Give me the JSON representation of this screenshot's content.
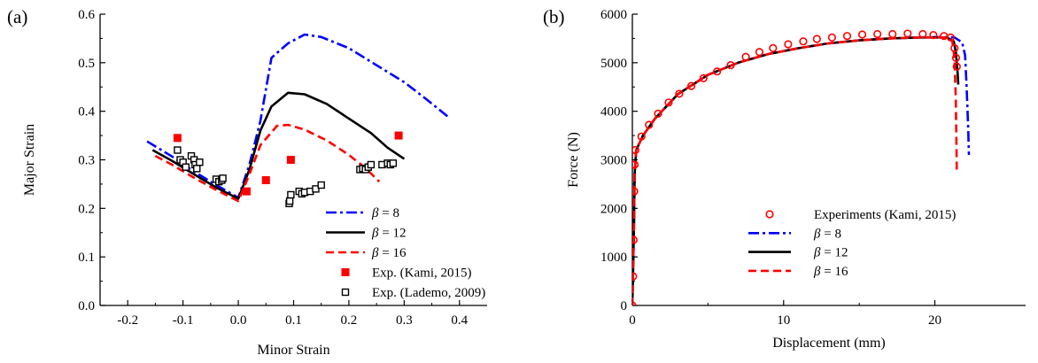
{
  "chart_data": [
    {
      "type": "scatter",
      "panel_label": "(a)",
      "xlabel": "Minor Strain",
      "ylabel": "Major Strain",
      "xlim": [
        -0.25,
        0.45
      ],
      "ylim": [
        0.0,
        0.6
      ],
      "xticks": [
        -0.2,
        -0.1,
        0.0,
        0.1,
        0.2,
        0.3,
        0.4
      ],
      "xtick_labels": [
        "-0.2",
        "-0.1",
        "0.0",
        "0.1",
        "0.2",
        "0.3",
        "0.4"
      ],
      "yticks": [
        0.0,
        0.1,
        0.2,
        0.3,
        0.4,
        0.5,
        0.6
      ],
      "ytick_labels": [
        "0.0",
        "0.1",
        "0.2",
        "0.3",
        "0.4",
        "0.5",
        "0.6"
      ],
      "grid": false,
      "legend_position": "bottom-right",
      "series": [
        {
          "name": "β = 8",
          "name_prefix": "β",
          "name_suffix": " = 8",
          "kind": "line",
          "style": "dashdot",
          "color": "#0000ff",
          "points": [
            [
              -0.165,
              0.338
            ],
            [
              -0.12,
              0.307
            ],
            [
              -0.08,
              0.276
            ],
            [
              -0.04,
              0.248
            ],
            [
              0.0,
              0.222
            ],
            [
              0.02,
              0.29
            ],
            [
              0.04,
              0.38
            ],
            [
              0.06,
              0.51
            ],
            [
              0.09,
              0.54
            ],
            [
              0.12,
              0.558
            ],
            [
              0.15,
              0.553
            ],
            [
              0.2,
              0.53
            ],
            [
              0.25,
              0.495
            ],
            [
              0.3,
              0.46
            ],
            [
              0.34,
              0.425
            ],
            [
              0.38,
              0.388
            ]
          ]
        },
        {
          "name": "β = 12",
          "name_prefix": "β",
          "name_suffix": " = 12",
          "kind": "line",
          "style": "solid",
          "color": "#000000",
          "points": [
            [
              -0.155,
              0.32
            ],
            [
              -0.12,
              0.298
            ],
            [
              -0.08,
              0.27
            ],
            [
              -0.04,
              0.243
            ],
            [
              0.0,
              0.22
            ],
            [
              0.02,
              0.28
            ],
            [
              0.04,
              0.36
            ],
            [
              0.06,
              0.41
            ],
            [
              0.09,
              0.438
            ],
            [
              0.12,
              0.435
            ],
            [
              0.16,
              0.415
            ],
            [
              0.2,
              0.385
            ],
            [
              0.24,
              0.355
            ],
            [
              0.27,
              0.325
            ],
            [
              0.3,
              0.302
            ]
          ]
        },
        {
          "name": "β = 16",
          "name_prefix": "β",
          "name_suffix": " = 16",
          "kind": "line",
          "style": "dashed",
          "color": "#ff0000",
          "points": [
            [
              -0.15,
              0.308
            ],
            [
              -0.12,
              0.29
            ],
            [
              -0.08,
              0.263
            ],
            [
              -0.04,
              0.238
            ],
            [
              0.0,
              0.215
            ],
            [
              0.02,
              0.27
            ],
            [
              0.04,
              0.33
            ],
            [
              0.07,
              0.37
            ],
            [
              0.09,
              0.372
            ],
            [
              0.12,
              0.362
            ],
            [
              0.16,
              0.34
            ],
            [
              0.2,
              0.31
            ],
            [
              0.23,
              0.283
            ],
            [
              0.255,
              0.255
            ]
          ]
        },
        {
          "name": "Exp. (Kami, 2015)",
          "kind": "marker",
          "marker": "filled-square",
          "color": "#ff0000",
          "points": [
            [
              -0.11,
              0.345
            ],
            [
              0.015,
              0.235
            ],
            [
              0.05,
              0.258
            ],
            [
              0.095,
              0.3
            ],
            [
              0.29,
              0.35
            ]
          ]
        },
        {
          "name": "Exp. (Lademo, 2009)",
          "kind": "marker",
          "marker": "open-square",
          "color": "#000000",
          "points": [
            [
              -0.11,
              0.32
            ],
            [
              -0.105,
              0.3
            ],
            [
              -0.1,
              0.295
            ],
            [
              -0.095,
              0.285
            ],
            [
              -0.085,
              0.308
            ],
            [
              -0.08,
              0.3
            ],
            [
              -0.078,
              0.29
            ],
            [
              -0.075,
              0.282
            ],
            [
              -0.07,
              0.295
            ],
            [
              -0.04,
              0.26
            ],
            [
              -0.035,
              0.255
            ],
            [
              -0.03,
              0.258
            ],
            [
              -0.028,
              0.262
            ],
            [
              0.092,
              0.21
            ],
            [
              0.093,
              0.215
            ],
            [
              0.095,
              0.228
            ],
            [
              0.11,
              0.235
            ],
            [
              0.115,
              0.23
            ],
            [
              0.12,
              0.233
            ],
            [
              0.13,
              0.235
            ],
            [
              0.14,
              0.24
            ],
            [
              0.15,
              0.248
            ],
            [
              0.22,
              0.28
            ],
            [
              0.225,
              0.282
            ],
            [
              0.23,
              0.28
            ],
            [
              0.235,
              0.285
            ],
            [
              0.24,
              0.29
            ],
            [
              0.26,
              0.29
            ],
            [
              0.27,
              0.293
            ],
            [
              0.275,
              0.29
            ],
            [
              0.28,
              0.293
            ]
          ]
        }
      ]
    },
    {
      "type": "line",
      "panel_label": "(b)",
      "xlabel": "Displacement (mm)",
      "ylabel": "Force (N)",
      "xlim": [
        0,
        26
      ],
      "ylim": [
        0,
        6000
      ],
      "xticks": [
        0,
        10,
        20
      ],
      "xtick_labels": [
        "0",
        "10",
        "20"
      ],
      "yticks": [
        0,
        1000,
        2000,
        3000,
        4000,
        5000,
        6000
      ],
      "ytick_labels": [
        "0",
        "1000",
        "2000",
        "3000",
        "4000",
        "5000",
        "6000"
      ],
      "grid": false,
      "legend_position": "bottom-right",
      "series": [
        {
          "name": "Experiments (Kami, 2015)",
          "kind": "marker",
          "marker": "open-circle",
          "color": "#ff0000",
          "points": [
            [
              0.0,
              0
            ],
            [
              0.05,
              600
            ],
            [
              0.08,
              1350
            ],
            [
              0.12,
              2350
            ],
            [
              0.15,
              2900
            ],
            [
              0.2,
              3200
            ],
            [
              0.6,
              3480
            ],
            [
              1.1,
              3720
            ],
            [
              1.7,
              3950
            ],
            [
              2.4,
              4180
            ],
            [
              3.1,
              4360
            ],
            [
              3.9,
              4520
            ],
            [
              4.7,
              4680
            ],
            [
              5.6,
              4820
            ],
            [
              6.5,
              4950
            ],
            [
              7.5,
              5120
            ],
            [
              8.4,
              5220
            ],
            [
              9.3,
              5300
            ],
            [
              10.3,
              5380
            ],
            [
              11.3,
              5440
            ],
            [
              12.2,
              5490
            ],
            [
              13.2,
              5520
            ],
            [
              14.2,
              5550
            ],
            [
              15.2,
              5580
            ],
            [
              16.2,
              5590
            ],
            [
              17.2,
              5590
            ],
            [
              18.2,
              5600
            ],
            [
              19.2,
              5590
            ],
            [
              19.9,
              5570
            ],
            [
              20.6,
              5550
            ],
            [
              21.05,
              5520
            ],
            [
              21.3,
              5300
            ],
            [
              21.4,
              5100
            ],
            [
              21.45,
              4920
            ]
          ]
        },
        {
          "name": "β = 8",
          "name_prefix": "β",
          "name_suffix": " = 8",
          "kind": "line",
          "style": "dashdot",
          "color": "#0000ff",
          "points": [
            [
              0,
              0
            ],
            [
              0.1,
              1500
            ],
            [
              0.15,
              2700
            ],
            [
              0.25,
              3200
            ],
            [
              0.7,
              3500
            ],
            [
              1.5,
              3850
            ],
            [
              3,
              4350
            ],
            [
              5,
              4750
            ],
            [
              7,
              5000
            ],
            [
              9,
              5180
            ],
            [
              11,
              5300
            ],
            [
              13,
              5400
            ],
            [
              15,
              5460
            ],
            [
              17,
              5500
            ],
            [
              19,
              5520
            ],
            [
              20.5,
              5530
            ],
            [
              21.3,
              5520
            ],
            [
              21.8,
              5420
            ],
            [
              22.0,
              5150
            ],
            [
              22.1,
              4500
            ],
            [
              22.2,
              3700
            ],
            [
              22.25,
              3100
            ]
          ]
        },
        {
          "name": "β = 12",
          "name_prefix": "β",
          "name_suffix": " = 12",
          "kind": "line",
          "style": "solid",
          "color": "#000000",
          "points": [
            [
              0,
              0
            ],
            [
              0.1,
              1500
            ],
            [
              0.15,
              2700
            ],
            [
              0.25,
              3200
            ],
            [
              0.7,
              3500
            ],
            [
              1.5,
              3850
            ],
            [
              3,
              4350
            ],
            [
              5,
              4750
            ],
            [
              7,
              5000
            ],
            [
              9,
              5180
            ],
            [
              11,
              5300
            ],
            [
              13,
              5400
            ],
            [
              15,
              5460
            ],
            [
              17,
              5500
            ],
            [
              19,
              5520
            ],
            [
              20.8,
              5520
            ],
            [
              21.25,
              5440
            ],
            [
              21.4,
              5200
            ],
            [
              21.5,
              4800
            ],
            [
              21.55,
              4550
            ]
          ]
        },
        {
          "name": "β = 16",
          "name_prefix": "β",
          "name_suffix": " = 16",
          "kind": "line",
          "style": "dashed",
          "color": "#ff0000",
          "points": [
            [
              0,
              0
            ],
            [
              0.1,
              1500
            ],
            [
              0.15,
              2700
            ],
            [
              0.25,
              3200
            ],
            [
              0.7,
              3500
            ],
            [
              1.5,
              3850
            ],
            [
              3,
              4350
            ],
            [
              5,
              4750
            ],
            [
              7,
              5000
            ],
            [
              9,
              5180
            ],
            [
              11,
              5300
            ],
            [
              13,
              5400
            ],
            [
              15,
              5460
            ],
            [
              17,
              5500
            ],
            [
              19,
              5520
            ],
            [
              20.7,
              5520
            ],
            [
              21.15,
              5450
            ],
            [
              21.3,
              5100
            ],
            [
              21.38,
              4300
            ],
            [
              21.42,
              3500
            ],
            [
              21.45,
              2750
            ]
          ]
        }
      ]
    }
  ]
}
